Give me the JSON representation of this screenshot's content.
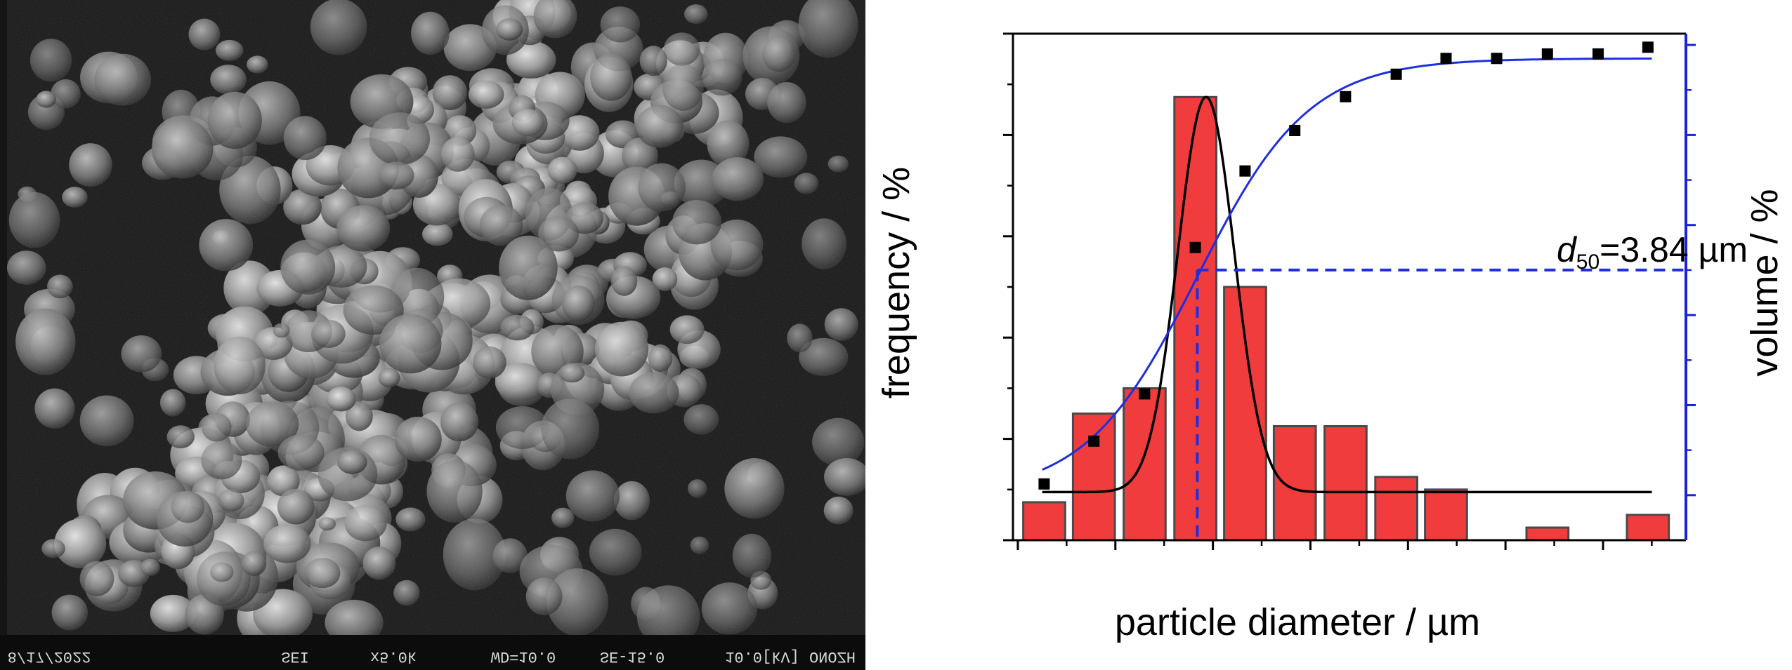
{
  "sem_image": {
    "footer_fields": [
      "8/17/2022",
      "SEI",
      "x5.0k",
      "WD=10.0",
      "SE-15.0",
      "10.0[kV]",
      "ONOZH"
    ]
  },
  "chart_data": {
    "type": "bar",
    "xlabel": "particle diameter / µm",
    "ylabel_left": "frequency / %",
    "ylabel_right": "volume / %",
    "xlim": [
      1.95,
      8.85
    ],
    "ylim_left": [
      0,
      40
    ],
    "ylim_right": [
      -10,
      102.5
    ],
    "x_ticks": [
      "2",
      "3",
      "4",
      "5",
      "6",
      "7",
      "8"
    ],
    "y_left_ticks": [
      "0",
      "8",
      "16",
      "24",
      "32",
      "40"
    ],
    "y_right_ticks": [
      "0",
      "20",
      "40",
      "60",
      "80",
      "100"
    ],
    "bar_width": 0.43,
    "bars": {
      "x": [
        2.27,
        2.78,
        3.3,
        3.82,
        4.33,
        4.84,
        5.36,
        5.88,
        6.39,
        6.91,
        7.43,
        7.95,
        8.46
      ],
      "values": [
        3,
        10,
        12,
        35,
        20,
        9,
        9,
        5,
        4,
        0,
        1,
        0,
        2
      ]
    },
    "gaussian_fit": {
      "x0": 3.93,
      "sigma": 0.29,
      "amplitude": 35,
      "baseline": 3.8,
      "x_range": [
        2.25,
        8.5
      ]
    },
    "cumulative_points": {
      "x": [
        2.27,
        2.78,
        3.3,
        3.82,
        4.33,
        4.84,
        5.36,
        5.88,
        6.39,
        6.91,
        7.43,
        7.95,
        8.46
      ],
      "values": [
        2.5,
        12,
        22.5,
        55,
        72,
        81,
        88.5,
        93.5,
        97,
        97,
        98,
        98,
        99.5
      ]
    },
    "cumulative_fit": {
      "x0": 3.84,
      "k": 1.75,
      "max": 97,
      "x_range": [
        2.25,
        8.5
      ]
    },
    "d50": {
      "value": 3.84,
      "volume": 50,
      "label_d": "d",
      "label_sub": "50",
      "label_rest": "=3.84 µm"
    },
    "colors": {
      "bar_fill": "#f03c3c",
      "bar_stroke": "#4a4a4a",
      "gaussian": "#000000",
      "cumulative": "#1f2ee0",
      "right_axis": "#1a22d8",
      "points": "#000000"
    }
  }
}
